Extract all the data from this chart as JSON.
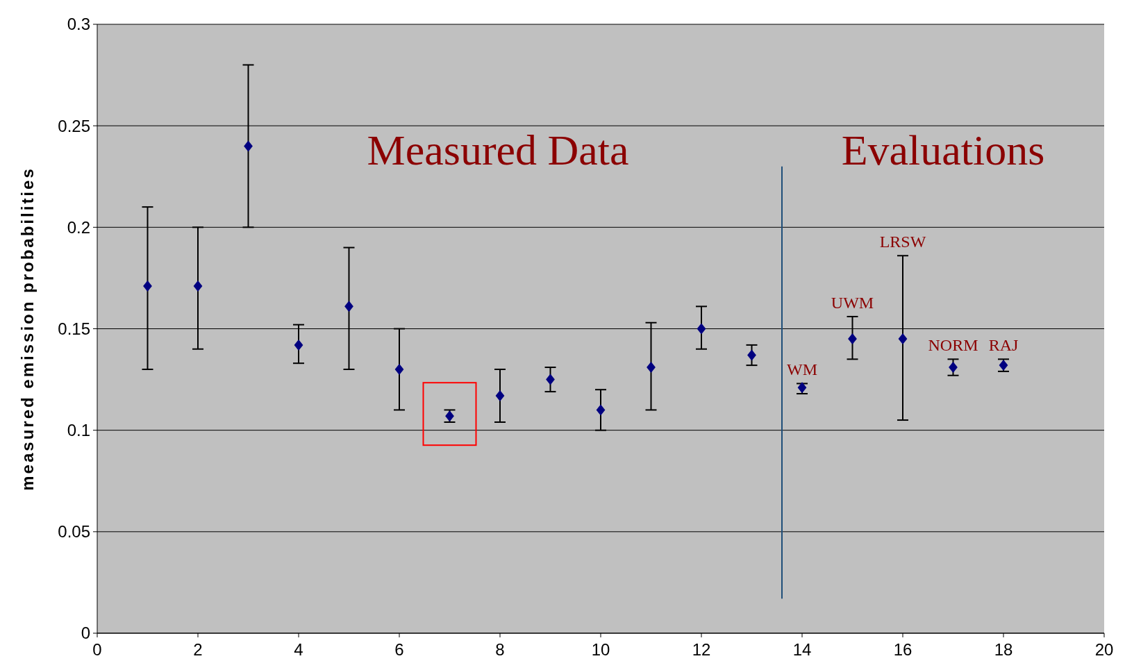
{
  "chart_data": {
    "type": "scatter",
    "ylabel": "measured emission probabilities",
    "xlim": [
      0,
      20
    ],
    "xticks": [
      0,
      2,
      4,
      6,
      8,
      10,
      12,
      14,
      16,
      18,
      20
    ],
    "ylim": [
      0,
      0.3
    ],
    "yticks": [
      0,
      0.05,
      0.1,
      0.15,
      0.2,
      0.25,
      0.3
    ],
    "grid": "y",
    "marker": "diamond",
    "series": [
      {
        "color": "#000080",
        "x": [
          1,
          2,
          3,
          4,
          5,
          6,
          7,
          8,
          9,
          10,
          11,
          12,
          13,
          14,
          15,
          16,
          17,
          18
        ],
        "values": [
          0.171,
          0.171,
          0.24,
          0.142,
          0.161,
          0.13,
          0.107,
          0.117,
          0.125,
          0.11,
          0.131,
          0.15,
          0.137,
          0.121,
          0.145,
          0.145,
          0.131,
          0.132
        ],
        "errors": [
          [
            0.13,
            0.21
          ],
          [
            0.14,
            0.2
          ],
          [
            0.2,
            0.28
          ],
          [
            0.133,
            0.152
          ],
          [
            0.13,
            0.19
          ],
          [
            0.11,
            0.15
          ],
          [
            0.104,
            0.11
          ],
          [
            0.104,
            0.13
          ],
          [
            0.119,
            0.131
          ],
          [
            0.1,
            0.12
          ],
          [
            0.11,
            0.153
          ],
          [
            0.14,
            0.161
          ],
          [
            0.132,
            0.142
          ],
          [
            0.118,
            0.123
          ],
          [
            0.135,
            0.156
          ],
          [
            0.105,
            0.186
          ],
          [
            0.127,
            0.135
          ],
          [
            0.129,
            0.135
          ]
        ]
      }
    ],
    "ref_lines": [
      {
        "axis": "x",
        "value": 13.6,
        "color": "#1f4e79"
      }
    ],
    "annotations": [
      "Measured Data",
      "Evaluations",
      {
        "text": "WM",
        "x": 14,
        "y": 0.121
      },
      {
        "text": "UWM",
        "x": 15,
        "y": 0.145
      },
      {
        "text": "LRSW",
        "x": 16,
        "y": 0.186
      },
      {
        "text": "NORM",
        "x": 17,
        "y": 0.131
      },
      {
        "text": "RAJ",
        "x": 18,
        "y": 0.132
      }
    ]
  }
}
